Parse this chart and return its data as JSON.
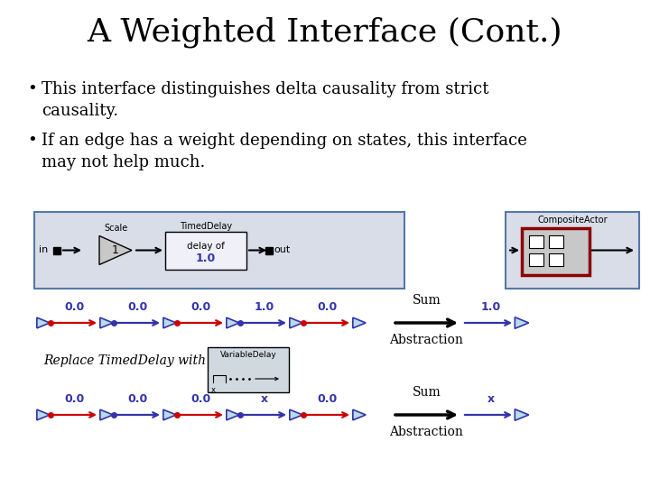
{
  "title": "A Weighted Interface (Cont.)",
  "bullets": [
    "This interface distinguishes delta causality from strict\ncausality.",
    "If an edge has a weight depending on states, this interface\nmay not help much."
  ],
  "row1_labels": [
    "0.0",
    "0.0",
    "0.0",
    "1.0",
    "0.0"
  ],
  "row2_labels": [
    "0.0",
    "0.0",
    "0.0",
    "x",
    "0.0"
  ],
  "result_row1": "1.0",
  "result_row2": "x",
  "sum_label": "Sum",
  "abstraction_label": "Abstraction",
  "replace_label": "Replace TimedDelay with",
  "bg_color": "#ffffff",
  "title_fontsize": 26,
  "bullet_fontsize": 13,
  "arrow_blue": "#3333aa",
  "arrow_red": "#cc0000",
  "triangle_face": "#b8dce8",
  "triangle_edge": "#3333aa",
  "label_color": "#3333aa",
  "diagram_box_color": "#d8dde8",
  "diagram_box_edge": "#5577aa",
  "comp_box_color": "#d8dde8",
  "comp_box_edge": "#5577aa",
  "inner_red_edge": "#8b0000"
}
